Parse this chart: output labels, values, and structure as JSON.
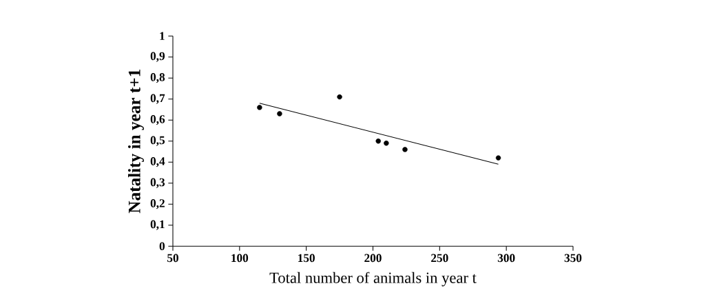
{
  "chart_data": {
    "type": "scatter",
    "xlabel": "Total number of animals in year t",
    "ylabel": "Natality in year t+1",
    "xlim": [
      50,
      350
    ],
    "xticks": [
      50,
      100,
      150,
      200,
      250,
      300,
      350
    ],
    "ylim": [
      0,
      1
    ],
    "yticks": [
      0,
      {
        "value": 0.1,
        "label": "0,1"
      },
      {
        "value": 0.2,
        "label": "0,2"
      },
      {
        "value": 0.3,
        "label": "0,3"
      },
      {
        "value": 0.4,
        "label": "0,4"
      },
      {
        "value": 0.5,
        "label": "0,5"
      },
      {
        "value": 0.6,
        "label": "0,6"
      },
      {
        "value": 0.7,
        "label": "0,7"
      },
      {
        "value": 0.8,
        "label": "0,8"
      },
      {
        "value": 0.9,
        "label": "0,9"
      },
      1
    ],
    "grid": false,
    "series": [
      {
        "marker": "circle",
        "color": "#000000",
        "x": [
          115,
          130,
          175,
          204,
          210,
          224,
          294
        ],
        "values": [
          0.66,
          0.63,
          0.71,
          0.5,
          0.49,
          0.46,
          0.42
        ]
      },
      {
        "type": "line",
        "marker": "none",
        "color": "#000000",
        "x": [
          115,
          294
        ],
        "values": [
          0.68,
          0.39
        ]
      }
    ]
  }
}
